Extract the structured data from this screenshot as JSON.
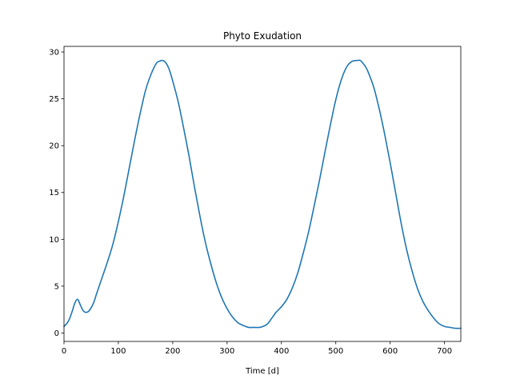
{
  "chart_data": {
    "type": "line",
    "title": "Phyto Exudation",
    "xlabel": "Time [d]",
    "ylabel": "",
    "xlim": [
      0,
      730
    ],
    "ylim": [
      -0.9,
      30.6
    ],
    "xticks": [
      0,
      100,
      200,
      300,
      400,
      500,
      600,
      700
    ],
    "yticks": [
      0,
      5,
      10,
      15,
      20,
      25,
      30
    ],
    "grid": false,
    "legend": "none",
    "line_color": "#1f77b4",
    "series": [
      {
        "x": [
          0,
          5,
          10,
          15,
          20,
          25,
          30,
          35,
          40,
          45,
          50,
          55,
          60,
          70,
          80,
          90,
          100,
          110,
          120,
          130,
          140,
          150,
          160,
          170,
          175,
          180,
          185,
          190,
          195,
          200,
          210,
          220,
          230,
          240,
          250,
          260,
          270,
          280,
          290,
          300,
          310,
          320,
          330,
          340,
          350,
          360,
          370,
          375,
          380,
          385,
          390,
          400,
          410,
          420,
          430,
          440,
          450,
          460,
          470,
          480,
          490,
          500,
          510,
          520,
          530,
          540,
          545,
          550,
          555,
          560,
          570,
          580,
          590,
          600,
          610,
          620,
          630,
          640,
          650,
          660,
          670,
          680,
          690,
          700,
          710,
          720,
          730
        ],
        "y": [
          0.7,
          1.0,
          1.5,
          2.3,
          3.2,
          3.6,
          3.0,
          2.4,
          2.2,
          2.3,
          2.7,
          3.3,
          4.2,
          5.9,
          7.6,
          9.5,
          11.9,
          14.6,
          17.6,
          20.6,
          23.4,
          25.9,
          27.6,
          28.8,
          29.0,
          29.1,
          29.0,
          28.6,
          27.9,
          26.9,
          24.7,
          21.9,
          18.9,
          15.6,
          12.5,
          9.7,
          7.4,
          5.4,
          3.8,
          2.6,
          1.7,
          1.1,
          0.8,
          0.6,
          0.6,
          0.6,
          0.8,
          1.0,
          1.4,
          1.8,
          2.2,
          2.8,
          3.6,
          4.8,
          6.4,
          8.5,
          10.8,
          13.5,
          16.3,
          19.3,
          22.2,
          24.9,
          27.0,
          28.4,
          29.0,
          29.1,
          29.1,
          28.8,
          28.4,
          27.8,
          26.2,
          23.9,
          21.2,
          18.2,
          15.0,
          11.8,
          9.0,
          6.7,
          4.8,
          3.4,
          2.4,
          1.6,
          1.0,
          0.7,
          0.6,
          0.5,
          0.5
        ]
      }
    ]
  }
}
